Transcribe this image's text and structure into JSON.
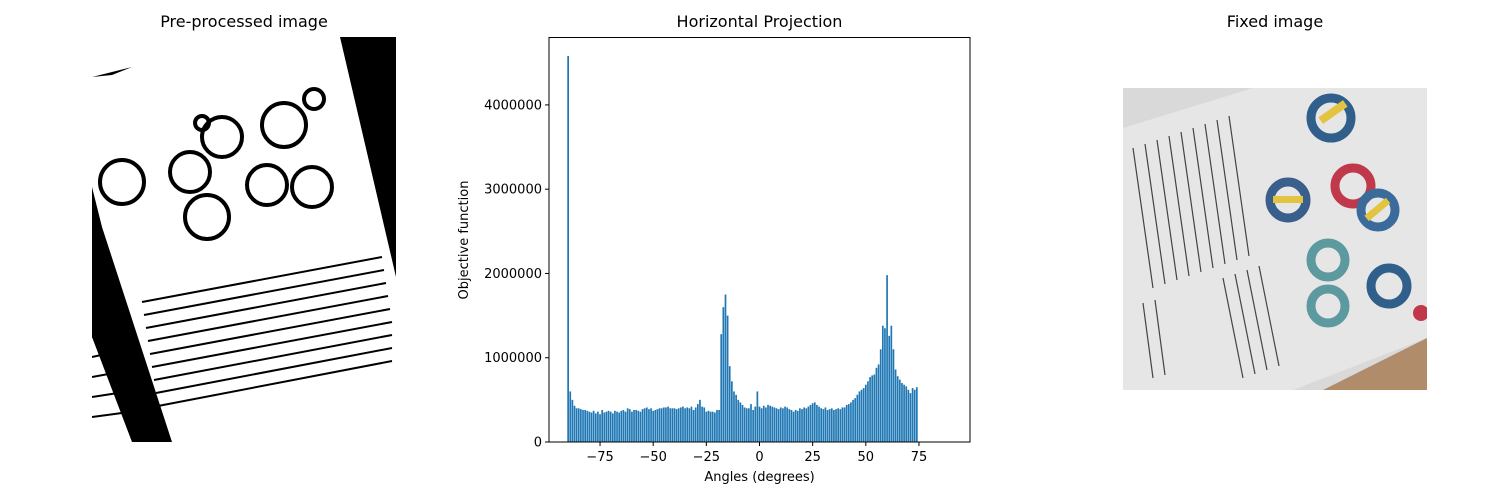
{
  "figure": {
    "left_title": "Pre-processed image",
    "middle_title": "Horizontal Projection",
    "right_title": "Fixed image"
  },
  "colors": {
    "bar": "#1f77b4",
    "axes": "#000000",
    "background": "#ffffff"
  },
  "chart_data": {
    "type": "bar",
    "title": "Horizontal Projection",
    "xlabel": "Angles (degrees)",
    "ylabel": "Objective function",
    "xlim": [
      -99,
      99
    ],
    "ylim": [
      0,
      4800000
    ],
    "grid": false,
    "x_ticks": [
      -75,
      -50,
      -25,
      0,
      25,
      50,
      75
    ],
    "x_tick_labels": [
      "−75",
      "−50",
      "−25",
      "0",
      "25",
      "50",
      "75"
    ],
    "y_ticks": [
      0,
      1000000,
      2000000,
      3000000,
      4000000
    ],
    "y_tick_labels": [
      "0",
      "1000000",
      "2000000",
      "3000000",
      "4000000"
    ],
    "bar_width": 0.8,
    "x_start": -90,
    "x_step": 1,
    "values": [
      4580000,
      600000,
      500000,
      430000,
      400000,
      400000,
      390000,
      380000,
      380000,
      370000,
      360000,
      350000,
      370000,
      340000,
      360000,
      330000,
      380000,
      350000,
      360000,
      370000,
      360000,
      340000,
      370000,
      360000,
      350000,
      370000,
      380000,
      360000,
      400000,
      390000,
      360000,
      380000,
      380000,
      370000,
      360000,
      390000,
      400000,
      410000,
      390000,
      400000,
      370000,
      380000,
      390000,
      400000,
      400000,
      410000,
      410000,
      420000,
      400000,
      400000,
      400000,
      390000,
      400000,
      410000,
      420000,
      400000,
      410000,
      400000,
      420000,
      380000,
      410000,
      450000,
      500000,
      420000,
      410000,
      360000,
      370000,
      360000,
      360000,
      350000,
      380000,
      380000,
      1280000,
      1600000,
      1750000,
      1500000,
      900000,
      720000,
      600000,
      560000,
      500000,
      470000,
      440000,
      410000,
      400000,
      400000,
      450000,
      380000,
      420000,
      600000,
      420000,
      400000,
      430000,
      410000,
      440000,
      430000,
      420000,
      410000,
      400000,
      390000,
      410000,
      400000,
      420000,
      410000,
      390000,
      380000,
      360000,
      380000,
      370000,
      400000,
      390000,
      410000,
      400000,
      420000,
      440000,
      460000,
      470000,
      440000,
      420000,
      400000,
      390000,
      410000,
      380000,
      390000,
      400000,
      380000,
      390000,
      400000,
      390000,
      410000,
      410000,
      440000,
      450000,
      470000,
      500000,
      520000,
      560000,
      600000,
      620000,
      640000,
      680000,
      720000,
      770000,
      790000,
      800000,
      880000,
      920000,
      1100000,
      1380000,
      1350000,
      1980000,
      1260000,
      1380000,
      1100000,
      860000,
      780000,
      740000,
      700000,
      680000,
      660000,
      620000,
      580000,
      640000,
      620000,
      650000
    ]
  }
}
